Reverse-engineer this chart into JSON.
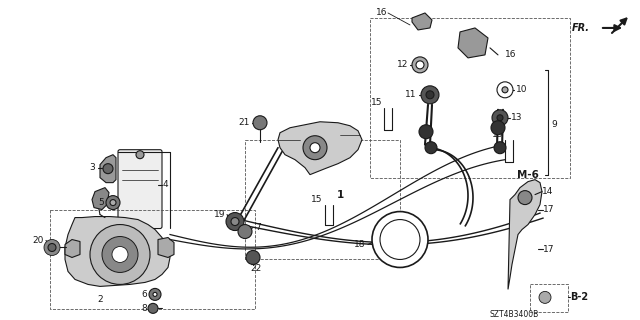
{
  "bg_color": "#ffffff",
  "line_color": "#1a1a1a",
  "diagram_code": "SZT4B3400B",
  "figsize": [
    6.4,
    3.2
  ],
  "dpi": 100,
  "label_fs": 6.5,
  "label_fs_sm": 5.5,
  "parts": {
    "fr_text": "FR.",
    "m6_text": "M-6",
    "b2_text": "B-2"
  }
}
